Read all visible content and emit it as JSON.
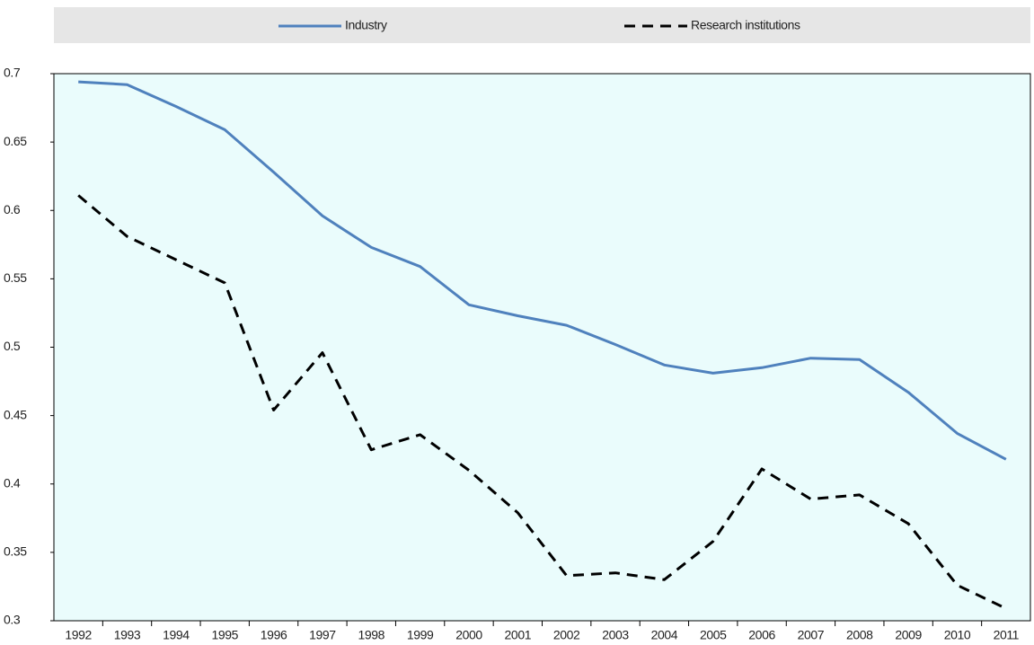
{
  "chart_data": {
    "type": "line",
    "categories": [
      "1992",
      "1993",
      "1994",
      "1995",
      "1996",
      "1997",
      "1998",
      "1999",
      "2000",
      "2001",
      "2002",
      "2003",
      "2004",
      "2005",
      "2006",
      "2007",
      "2008",
      "2009",
      "2010",
      "2011"
    ],
    "series": [
      {
        "name": "Industry",
        "color": "#4f81bd",
        "style": "solid",
        "values": [
          0.694,
          0.692,
          0.676,
          0.659,
          0.628,
          0.596,
          0.573,
          0.559,
          0.531,
          0.523,
          0.516,
          0.502,
          0.487,
          0.481,
          0.485,
          0.492,
          0.491,
          0.467,
          0.437,
          0.418
        ]
      },
      {
        "name": "Research institutions",
        "color": "#000000",
        "style": "dashed",
        "values": [
          0.611,
          0.581,
          0.564,
          0.547,
          0.454,
          0.496,
          0.425,
          0.436,
          0.41,
          0.379,
          0.333,
          0.335,
          0.33,
          0.358,
          0.411,
          0.389,
          0.392,
          0.371,
          0.326,
          0.309
        ]
      }
    ],
    "ylim": [
      0.3,
      0.7
    ],
    "yticks": [
      0.3,
      0.35,
      0.4,
      0.45,
      0.5,
      0.55,
      0.6,
      0.65,
      0.7
    ],
    "grid": false,
    "legend": "top",
    "plot_background": "#eafcfc"
  }
}
